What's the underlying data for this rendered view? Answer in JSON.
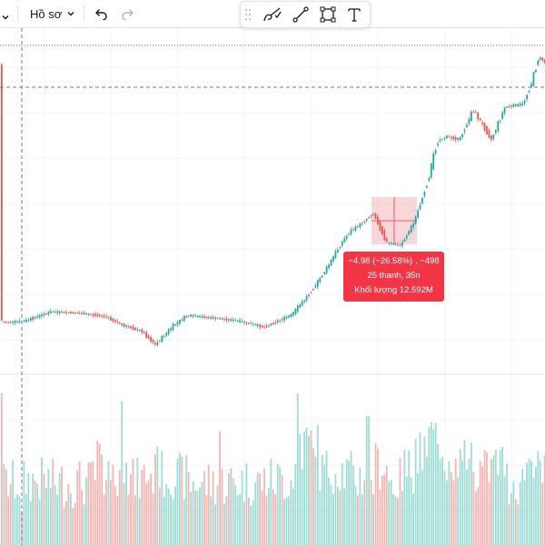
{
  "toolbar": {
    "profile_label": "Hồ sơ",
    "left_chevron_icon": "chevron-down-icon",
    "undo_icon": "undo-icon",
    "redo_icon": "redo-icon"
  },
  "drawing_toolbar": {
    "handle_icon": "drag-handle-icon",
    "tools": [
      "brush-icon",
      "trend-line-icon",
      "rectangle-icon",
      "text-icon"
    ]
  },
  "measure_tooltip": {
    "change": "−4.98 (−26.58%) , −498",
    "bars_time": "25 thanh, 35n",
    "volume": "Khối lượng 12.592M"
  },
  "colors": {
    "up": "#26a69a",
    "down": "#ef5350",
    "up_volume": "#9fdcd4",
    "down_volume": "#f5b5b4",
    "measure_fill": "#f6c8cc",
    "tooltip": "#f23645",
    "grid": "#f0f3fa"
  },
  "chart_data": {
    "type": "candlestick",
    "price_path": [
      [
        0,
        0.0
      ],
      [
        25,
        0.2
      ],
      [
        55,
        1.8
      ],
      [
        85,
        1.6
      ],
      [
        115,
        1.0
      ],
      [
        135,
        -0.5
      ],
      [
        155,
        -1.5
      ],
      [
        170,
        -3.8
      ],
      [
        190,
        -0.5
      ],
      [
        205,
        1.2
      ],
      [
        230,
        0.8
      ],
      [
        260,
        0.3
      ],
      [
        290,
        -0.8
      ],
      [
        320,
        1.3
      ],
      [
        335,
        4.0
      ],
      [
        345,
        6.0
      ],
      [
        360,
        9.5
      ],
      [
        375,
        13.5
      ],
      [
        385,
        15.5
      ],
      [
        395,
        16.5
      ],
      [
        410,
        18.5
      ],
      [
        425,
        13.5
      ],
      [
        440,
        13.0
      ],
      [
        455,
        17.0
      ],
      [
        470,
        24.0
      ],
      [
        480,
        30.5
      ],
      [
        490,
        31.5
      ],
      [
        505,
        31.0
      ],
      [
        520,
        36.0
      ],
      [
        540,
        31.0
      ],
      [
        555,
        36.5
      ],
      [
        575,
        37.0
      ],
      [
        585,
        41.0
      ],
      [
        592,
        45.0
      ],
      [
        600,
        44.0
      ]
    ],
    "volume_spikes": [
      [
        24,
        0.22
      ],
      [
        103,
        0.3
      ],
      [
        119,
        0.55
      ],
      [
        133,
        0.85
      ],
      [
        173,
        0.65
      ],
      [
        241,
        0.75
      ],
      [
        326,
        1.0
      ],
      [
        349,
        0.6
      ],
      [
        404,
        0.85
      ],
      [
        456,
        0.7
      ],
      [
        475,
        0.72
      ],
      [
        509,
        0.52
      ]
    ]
  }
}
